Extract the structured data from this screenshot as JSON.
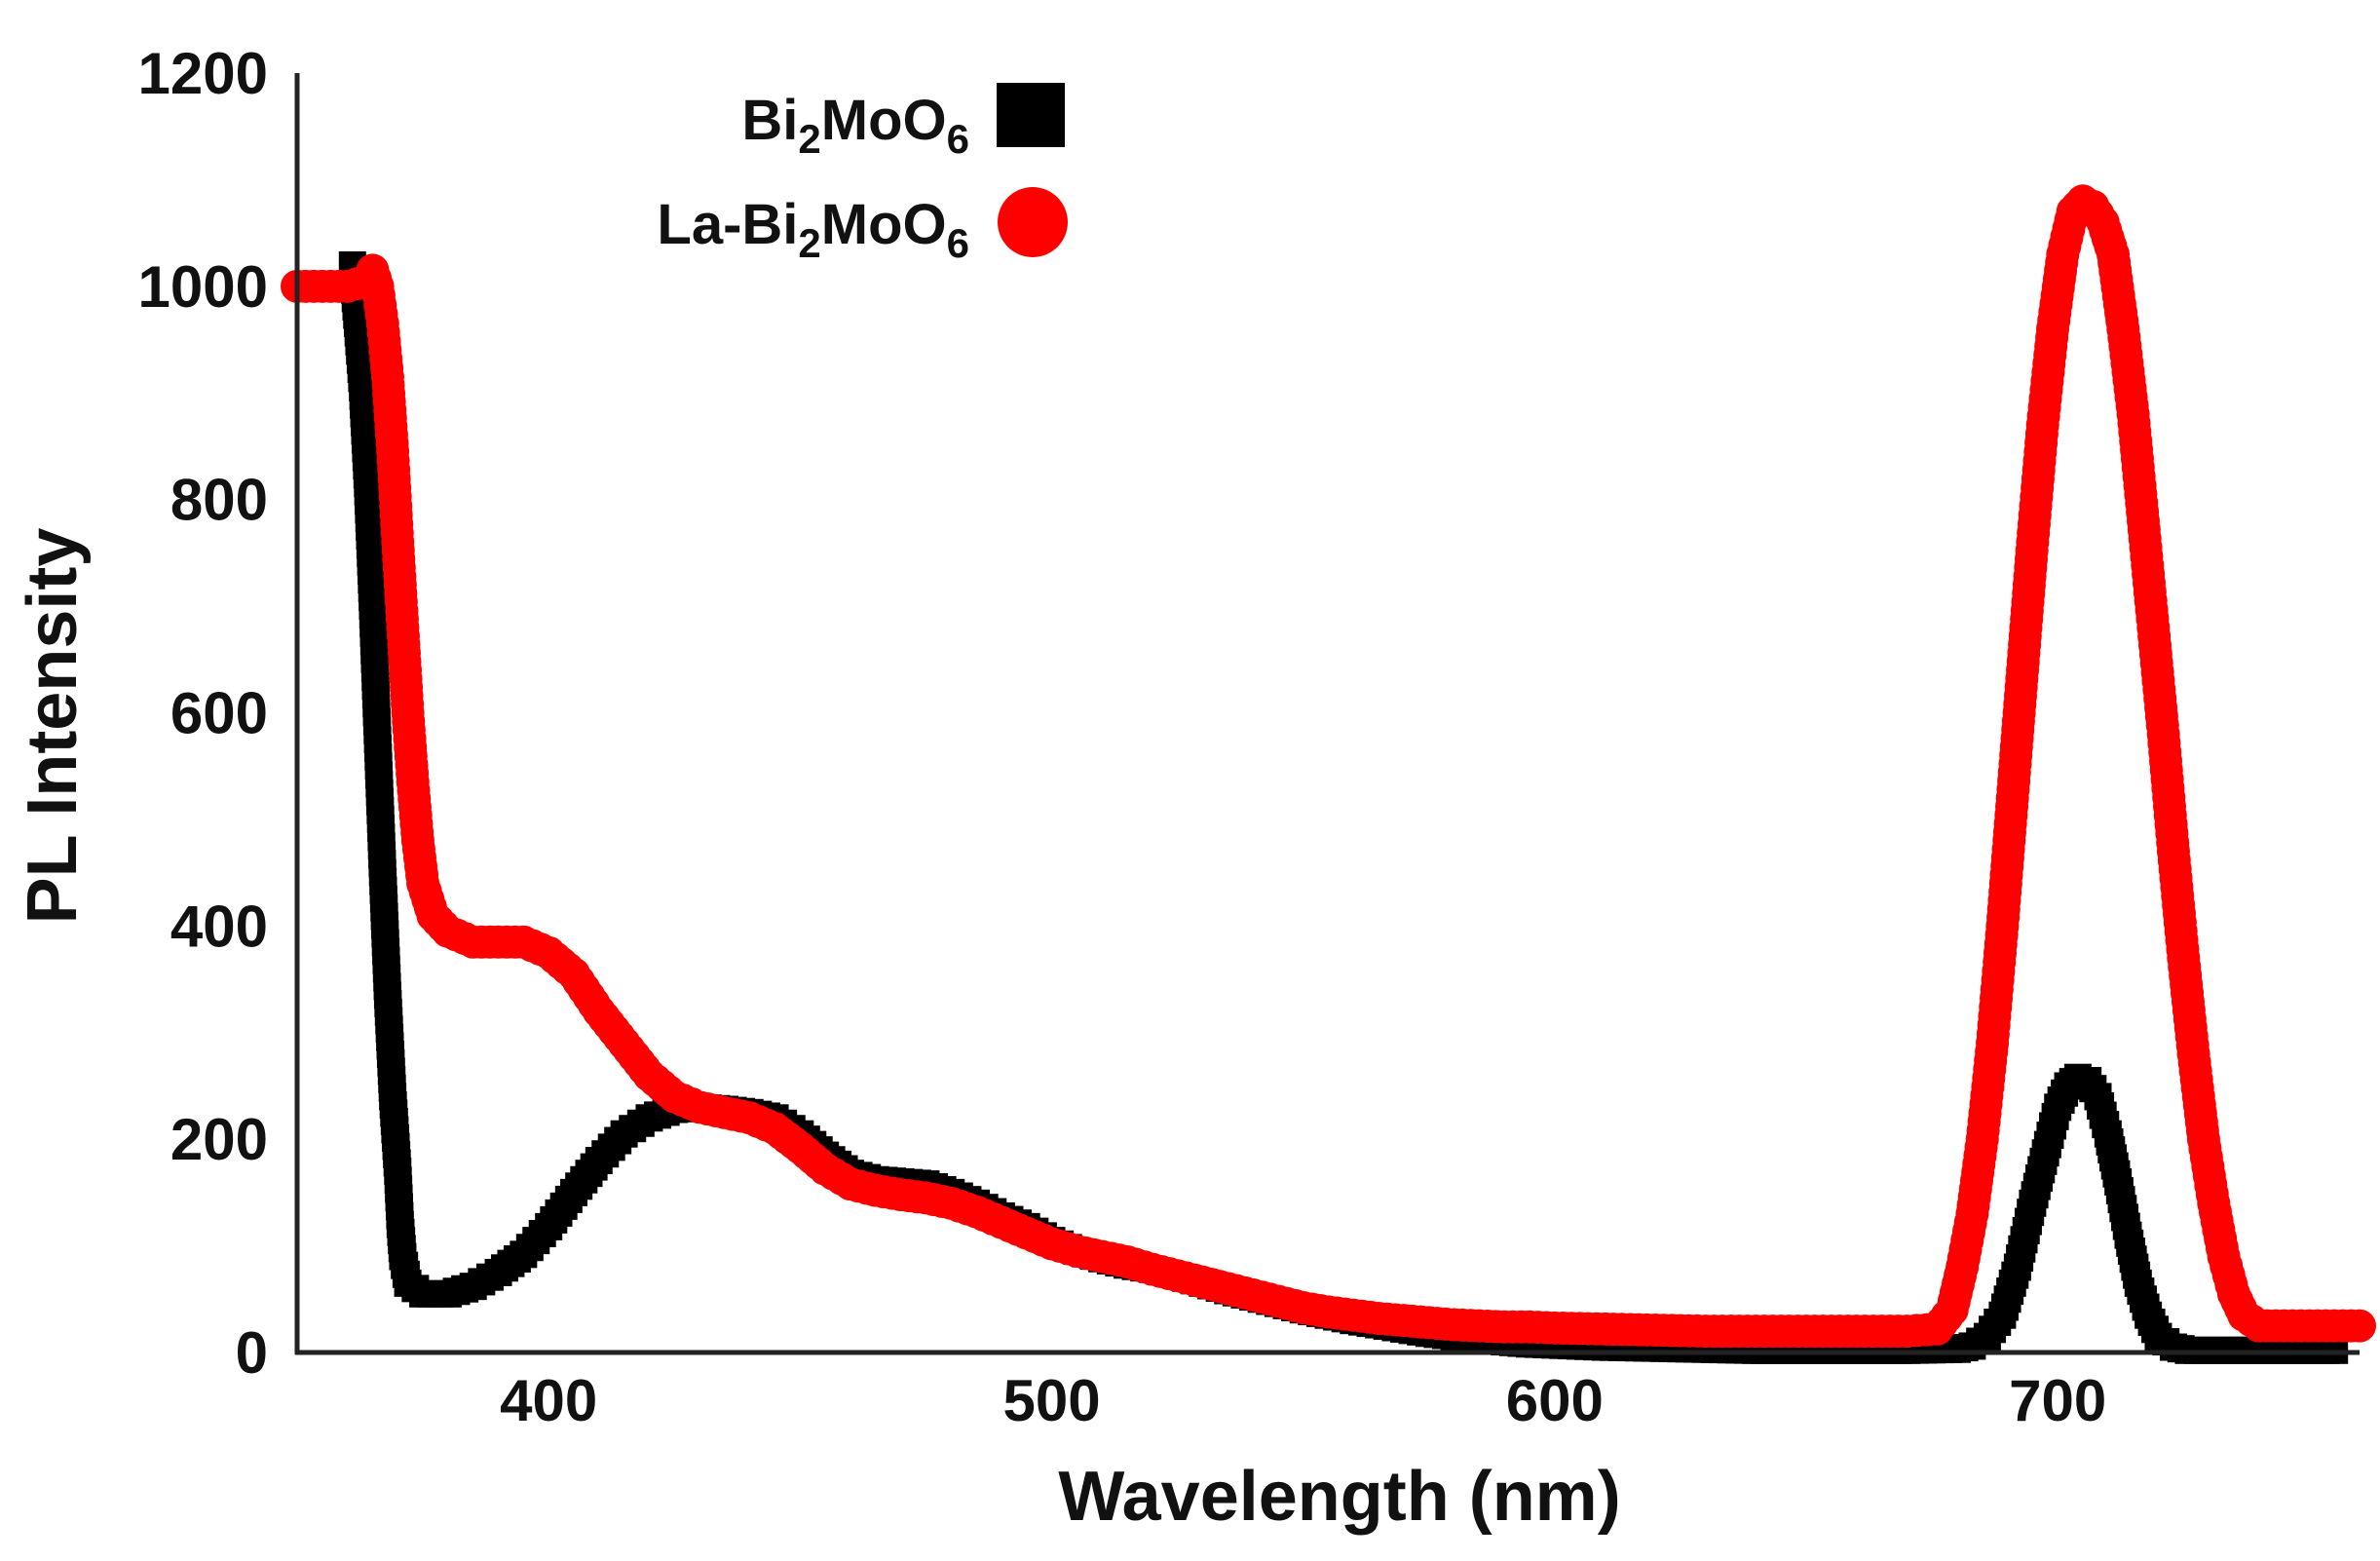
{
  "chart_data": {
    "type": "scatter",
    "title": "",
    "xlabel": "Wavelength (nm)",
    "ylabel": "PL Intensity",
    "xlim": [
      350,
      760
    ],
    "ylim": [
      0,
      1200
    ],
    "x_ticks": [
      400,
      500,
      600,
      700
    ],
    "y_ticks": [
      0,
      200,
      400,
      600,
      800,
      1000,
      1200
    ],
    "grid": false,
    "legend_position": "top-center",
    "series": [
      {
        "name": "Bi2MoO6",
        "label_main": "Bi",
        "label_sub1": "2",
        "label_mid": "MoO",
        "label_sub2": "6",
        "color": "#000000",
        "marker": "square",
        "points": [
          [
            361,
            1020
          ],
          [
            362,
            965
          ],
          [
            363,
            905
          ],
          [
            364,
            815
          ],
          [
            365,
            700
          ],
          [
            366,
            575
          ],
          [
            367,
            450
          ],
          [
            368,
            335
          ],
          [
            369,
            240
          ],
          [
            370,
            170
          ],
          [
            370.5,
            120
          ],
          [
            371,
            90
          ],
          [
            372,
            65
          ],
          [
            375,
            55
          ],
          [
            380,
            55
          ],
          [
            385,
            62
          ],
          [
            390,
            75
          ],
          [
            395,
            92
          ],
          [
            400,
            118
          ],
          [
            405,
            150
          ],
          [
            410,
            180
          ],
          [
            415,
            205
          ],
          [
            420,
            220
          ],
          [
            425,
            228
          ],
          [
            430,
            230
          ],
          [
            435,
            228
          ],
          [
            440,
            225
          ],
          [
            445,
            220
          ],
          [
            450,
            205
          ],
          [
            455,
            185
          ],
          [
            460,
            168
          ],
          [
            465,
            162
          ],
          [
            470,
            160
          ],
          [
            475,
            158
          ],
          [
            480,
            150
          ],
          [
            485,
            140
          ],
          [
            490,
            128
          ],
          [
            495,
            118
          ],
          [
            500,
            105
          ],
          [
            505,
            95
          ],
          [
            510,
            88
          ],
          [
            515,
            82
          ],
          [
            520,
            78
          ],
          [
            525,
            72
          ],
          [
            530,
            65
          ],
          [
            535,
            58
          ],
          [
            540,
            52
          ],
          [
            545,
            46
          ],
          [
            550,
            40
          ],
          [
            555,
            35
          ],
          [
            560,
            30
          ],
          [
            565,
            26
          ],
          [
            570,
            22
          ],
          [
            575,
            18
          ],
          [
            580,
            15
          ],
          [
            585,
            12
          ],
          [
            590,
            10
          ],
          [
            595,
            8
          ],
          [
            600,
            7
          ],
          [
            610,
            5
          ],
          [
            620,
            4
          ],
          [
            630,
            3
          ],
          [
            640,
            2
          ],
          [
            650,
            2
          ],
          [
            660,
            2
          ],
          [
            670,
            2
          ],
          [
            680,
            3
          ],
          [
            683,
            6
          ],
          [
            686,
            15
          ],
          [
            689,
            35
          ],
          [
            692,
            80
          ],
          [
            695,
            140
          ],
          [
            698,
            195
          ],
          [
            700,
            230
          ],
          [
            702,
            250
          ],
          [
            704,
            258
          ],
          [
            706,
            255
          ],
          [
            708,
            240
          ],
          [
            710,
            205
          ],
          [
            712,
            160
          ],
          [
            714,
            110
          ],
          [
            716,
            65
          ],
          [
            718,
            35
          ],
          [
            720,
            15
          ],
          [
            723,
            5
          ],
          [
            726,
            2
          ],
          [
            735,
            2
          ],
          [
            745,
            2
          ],
          [
            755,
            2
          ]
        ]
      },
      {
        "name": "La-Bi2MoO6",
        "label_main": "La-Bi",
        "label_sub1": "2",
        "label_mid": "MoO",
        "label_sub2": "6",
        "color": "#ff0000",
        "marker": "circle",
        "points": [
          [
            350,
            1000
          ],
          [
            355,
            1000
          ],
          [
            360,
            1000
          ],
          [
            364,
            1005
          ],
          [
            365,
            1015
          ],
          [
            366,
            1000
          ],
          [
            367,
            965
          ],
          [
            368,
            915
          ],
          [
            369,
            845
          ],
          [
            370,
            760
          ],
          [
            371,
            680
          ],
          [
            372,
            600
          ],
          [
            373,
            535
          ],
          [
            374,
            480
          ],
          [
            375,
            440
          ],
          [
            377,
            410
          ],
          [
            380,
            395
          ],
          [
            385,
            385
          ],
          [
            390,
            385
          ],
          [
            395,
            385
          ],
          [
            400,
            375
          ],
          [
            405,
            355
          ],
          [
            410,
            320
          ],
          [
            415,
            290
          ],
          [
            420,
            260
          ],
          [
            425,
            240
          ],
          [
            430,
            230
          ],
          [
            435,
            225
          ],
          [
            440,
            220
          ],
          [
            445,
            210
          ],
          [
            450,
            192
          ],
          [
            455,
            172
          ],
          [
            460,
            158
          ],
          [
            465,
            152
          ],
          [
            470,
            148
          ],
          [
            475,
            145
          ],
          [
            480,
            140
          ],
          [
            485,
            132
          ],
          [
            490,
            122
          ],
          [
            495,
            112
          ],
          [
            500,
            102
          ],
          [
            505,
            95
          ],
          [
            510,
            90
          ],
          [
            515,
            85
          ],
          [
            520,
            78
          ],
          [
            525,
            72
          ],
          [
            530,
            66
          ],
          [
            535,
            60
          ],
          [
            540,
            54
          ],
          [
            545,
            48
          ],
          [
            550,
            42
          ],
          [
            555,
            38
          ],
          [
            560,
            35
          ],
          [
            565,
            32
          ],
          [
            570,
            30
          ],
          [
            575,
            28
          ],
          [
            580,
            26
          ],
          [
            585,
            25
          ],
          [
            590,
            24
          ],
          [
            595,
            24
          ],
          [
            600,
            23
          ],
          [
            610,
            22
          ],
          [
            620,
            21
          ],
          [
            630,
            20
          ],
          [
            640,
            20
          ],
          [
            650,
            20
          ],
          [
            660,
            20
          ],
          [
            670,
            20
          ],
          [
            676,
            22
          ],
          [
            679,
            40
          ],
          [
            681,
            80
          ],
          [
            683,
            130
          ],
          [
            685,
            200
          ],
          [
            687,
            290
          ],
          [
            689,
            400
          ],
          [
            691,
            520
          ],
          [
            693,
            640
          ],
          [
            695,
            760
          ],
          [
            697,
            870
          ],
          [
            699,
            960
          ],
          [
            701,
            1030
          ],
          [
            703,
            1070
          ],
          [
            705,
            1080
          ],
          [
            707,
            1075
          ],
          [
            709,
            1060
          ],
          [
            711,
            1030
          ],
          [
            713,
            960
          ],
          [
            715,
            880
          ],
          [
            717,
            780
          ],
          [
            719,
            680
          ],
          [
            721,
            580
          ],
          [
            723,
            470
          ],
          [
            725,
            370
          ],
          [
            727,
            280
          ],
          [
            729,
            200
          ],
          [
            731,
            140
          ],
          [
            733,
            90
          ],
          [
            735,
            55
          ],
          [
            737,
            35
          ],
          [
            740,
            25
          ],
          [
            745,
            25
          ],
          [
            750,
            25
          ],
          [
            755,
            25
          ],
          [
            760,
            25
          ]
        ]
      }
    ]
  }
}
